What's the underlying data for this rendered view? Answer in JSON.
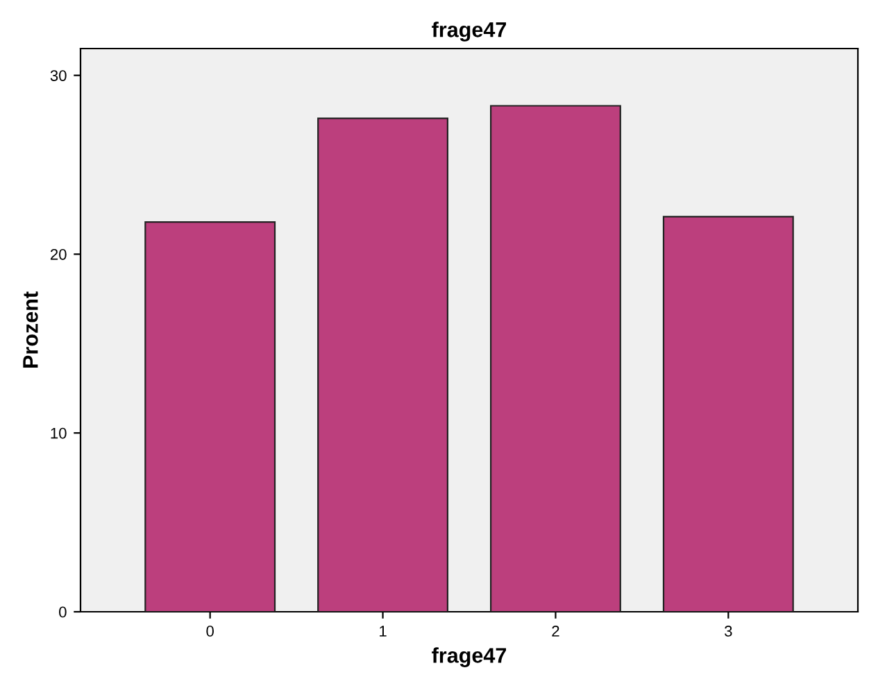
{
  "chart_data": {
    "type": "bar",
    "title": "frage47",
    "xlabel": "frage47",
    "ylabel": "Prozent",
    "categories": [
      "0",
      "1",
      "2",
      "3"
    ],
    "values": [
      21.8,
      27.6,
      28.3,
      22.1
    ],
    "color": "#bc3f7d",
    "ylim": [
      0,
      31.5
    ],
    "yticks": [
      0,
      10,
      20,
      30
    ],
    "grid": false
  }
}
